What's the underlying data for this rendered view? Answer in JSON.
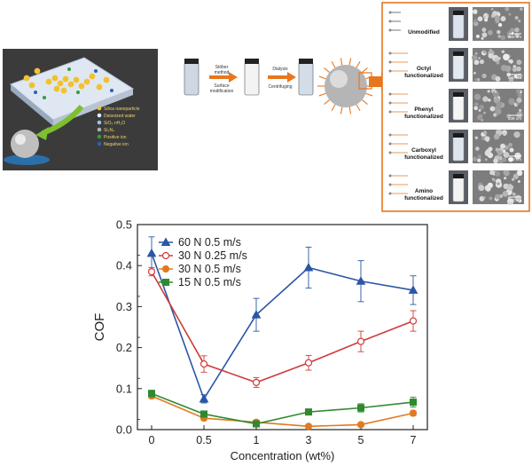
{
  "schematic": {
    "legend_items": [
      {
        "label": "Silica nanoparticle",
        "color": "#f2c12e"
      },
      {
        "label": "Deionized water",
        "color": "#e8eef7"
      },
      {
        "label": "SiO₂·nH₂O",
        "color": "#9bc4e8"
      },
      {
        "label": "Si₃N₄",
        "color": "#b0b0b0"
      },
      {
        "label": "Positive ion",
        "color": "#2e9e3e"
      },
      {
        "label": "Negative ion",
        "color": "#2d5fb4"
      }
    ],
    "process": {
      "step1_top": "Stöber",
      "step1_top2": "method",
      "step1_bottom": "Surface",
      "step1_bottom2": "modification",
      "step2_top": "Dialysis",
      "step2_bottom": "Centrifuging"
    },
    "panels": [
      {
        "label": "Unmodified",
        "label2": "",
        "scale": "500 nm"
      },
      {
        "label": "Octyl",
        "label2": "functionalized",
        "scale": "500 nm"
      },
      {
        "label": "Phenyl",
        "label2": "functionalized",
        "scale": "500 nm"
      },
      {
        "label": "Carboxyl",
        "label2": "functionalized",
        "scale": "500 nm"
      },
      {
        "label": "Amino",
        "label2": "functionalized",
        "scale": "500 nm"
      }
    ],
    "colors": {
      "accent": "#e8761e",
      "bg_dark": "#3a3a3a"
    }
  },
  "chart_data": {
    "type": "line",
    "categories": [
      "0",
      "0.5",
      "1",
      "3",
      "5",
      "7"
    ],
    "xlabel": "Concentration (wt%)",
    "ylabel": "COF",
    "ylim": [
      0,
      0.5
    ],
    "yticks": [
      "0.0",
      "0.1",
      "0.2",
      "0.3",
      "0.4",
      "0.5"
    ],
    "legend_position": "top-left",
    "series": [
      {
        "name": "60 N 0.5 m/s",
        "color": "#2a56a6",
        "marker": "triangle",
        "filled": true,
        "values": [
          0.43,
          0.075,
          0.28,
          0.395,
          0.362,
          0.34
        ],
        "errors": [
          0.04,
          0.01,
          0.04,
          0.05,
          0.05,
          0.035
        ]
      },
      {
        "name": "30 N 0.25 m/s",
        "color": "#d03a3a",
        "marker": "circle",
        "filled": false,
        "values": [
          0.385,
          0.16,
          0.115,
          0.163,
          0.215,
          0.265
        ],
        "errors": [
          0.01,
          0.02,
          0.012,
          0.018,
          0.025,
          0.025
        ]
      },
      {
        "name": "30 N 0.5 m/s",
        "color": "#e07a22",
        "marker": "circle",
        "filled": true,
        "values": [
          0.082,
          0.028,
          0.018,
          0.008,
          0.012,
          0.04
        ],
        "errors": [
          0.006,
          0.005,
          0.004,
          0.003,
          0.004,
          0.006
        ]
      },
      {
        "name": "15 N 0.5 m/s",
        "color": "#2f8a2f",
        "marker": "square",
        "filled": true,
        "values": [
          0.088,
          0.038,
          0.014,
          0.043,
          0.053,
          0.067
        ],
        "errors": [
          0.008,
          0.006,
          0.004,
          0.006,
          0.01,
          0.012
        ]
      }
    ]
  }
}
